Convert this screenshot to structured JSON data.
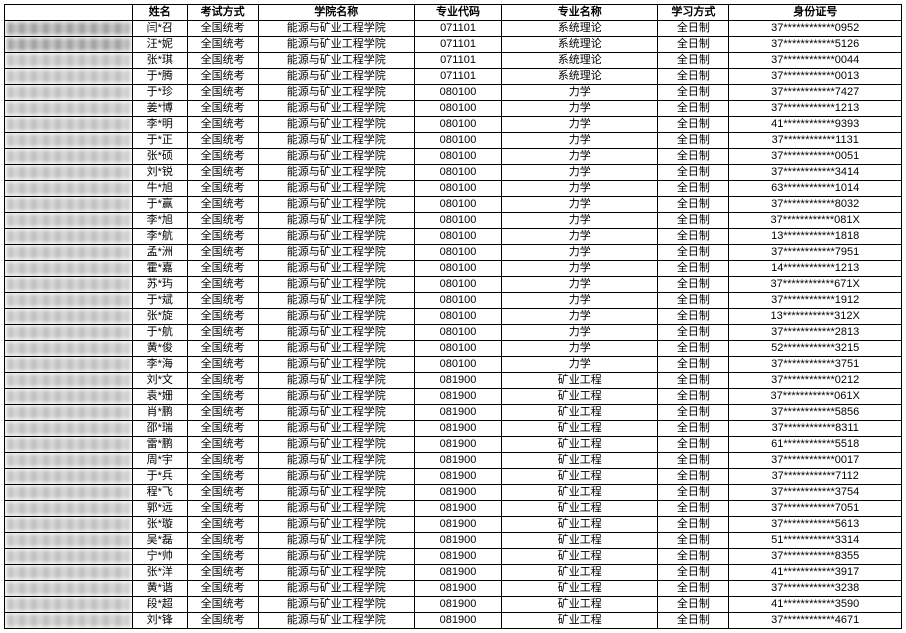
{
  "table": {
    "headers": {
      "idx": "",
      "name": "姓名",
      "exam": "考试方式",
      "college": "学院名称",
      "major_code": "专业代码",
      "major_name": "专业名称",
      "study_mode": "学习方式",
      "id_number": "身份证号"
    },
    "constants": {
      "exam": "全国统考",
      "college": "能源与矿业工程学院",
      "study_mode": "全日制"
    },
    "rows": [
      {
        "idx": "1",
        "name": "闫*召",
        "mcode": "071101",
        "mname": "系统理论",
        "idnum": "37************0952"
      },
      {
        "idx": "10",
        "name": "汪*妮",
        "mcode": "071101",
        "mname": "系统理论",
        "idnum": "37************5126"
      },
      {
        "idx": "10",
        "name": "张*琪",
        "mcode": "071101",
        "mname": "系统理论",
        "idnum": "37************0044"
      },
      {
        "idx": "104",
        "name": "于*腾",
        "mcode": "071101",
        "mname": "系统理论",
        "idnum": "37************0013"
      },
      {
        "idx": "104",
        "name": "于*珍",
        "mcode": "080100",
        "mname": "力学",
        "idnum": "37************7427"
      },
      {
        "idx": "10",
        "name": "姜*博",
        "mcode": "080100",
        "mname": "力学",
        "idnum": "37************1213"
      },
      {
        "idx": "10",
        "name": "李*明",
        "mcode": "080100",
        "mname": "力学",
        "idnum": "41************9393"
      },
      {
        "idx": "10",
        "name": "于*正",
        "mcode": "080100",
        "mname": "力学",
        "idnum": "37************1131"
      },
      {
        "idx": "10",
        "name": "张*硕",
        "mcode": "080100",
        "mname": "力学",
        "idnum": "37************0051"
      },
      {
        "idx": "104",
        "name": "刘*锐",
        "mcode": "080100",
        "mname": "力学",
        "idnum": "37************3414"
      },
      {
        "idx": "106",
        "name": "牛*旭",
        "mcode": "080100",
        "mname": "力学",
        "idnum": "63************1014"
      },
      {
        "idx": "102",
        "name": "于*赢",
        "mcode": "080100",
        "mname": "力学",
        "idnum": "37************8032"
      },
      {
        "idx": "102",
        "name": "李*旭",
        "mcode": "080100",
        "mname": "力学",
        "idnum": "37************081X"
      },
      {
        "idx": "102",
        "name": "李*航",
        "mcode": "080100",
        "mname": "力学",
        "idnum": "13************1818"
      },
      {
        "idx": "10",
        "name": "孟*洲",
        "mcode": "080100",
        "mname": "力学",
        "idnum": "37************7951"
      },
      {
        "idx": "101",
        "name": "霍*嘉",
        "mcode": "080100",
        "mname": "力学",
        "idnum": "14************1213"
      },
      {
        "idx": "102",
        "name": "苏*玙",
        "mcode": "080100",
        "mname": "力学",
        "idnum": "37************671X"
      },
      {
        "idx": "102",
        "name": "于*斌",
        "mcode": "080100",
        "mname": "力学",
        "idnum": "37************1912"
      },
      {
        "idx": "101",
        "name": "张*旋",
        "mcode": "080100",
        "mname": "力学",
        "idnum": "13************312X"
      },
      {
        "idx": "102",
        "name": "于*航",
        "mcode": "080100",
        "mname": "力学",
        "idnum": "37************2813"
      },
      {
        "idx": "106",
        "name": "黄*俊",
        "mcode": "080100",
        "mname": "力学",
        "idnum": "52************3215"
      },
      {
        "idx": "10",
        "name": "李*海",
        "mcode": "080100",
        "mname": "力学",
        "idnum": "37************3751"
      },
      {
        "idx": "10",
        "name": "刘*文",
        "mcode": "081900",
        "mname": "矿业工程",
        "idnum": "37************0212"
      },
      {
        "idx": "10",
        "name": "袁*姗",
        "mcode": "081900",
        "mname": "矿业工程",
        "idnum": "37************061X"
      },
      {
        "idx": "10",
        "name": "肖*鹏",
        "mcode": "081900",
        "mname": "矿业工程",
        "idnum": "37************5856"
      },
      {
        "idx": "104",
        "name": "邵*瑞",
        "mcode": "081900",
        "mname": "矿业工程",
        "idnum": "37************8311"
      },
      {
        "idx": "104",
        "name": "雷*鹏",
        "mcode": "081900",
        "mname": "矿业工程",
        "idnum": "61************5518"
      },
      {
        "idx": "104",
        "name": "周*宇",
        "mcode": "081900",
        "mname": "矿业工程",
        "idnum": "37************0017"
      },
      {
        "idx": "104",
        "name": "于*兵",
        "mcode": "081900",
        "mname": "矿业工程",
        "idnum": "37************7112"
      },
      {
        "idx": "102",
        "name": "程*飞",
        "mcode": "081900",
        "mname": "矿业工程",
        "idnum": "37************3754"
      },
      {
        "idx": "104",
        "name": "郭*远",
        "mcode": "081900",
        "mname": "矿业工程",
        "idnum": "37************7051"
      },
      {
        "idx": "104",
        "name": "张*璇",
        "mcode": "081900",
        "mname": "矿业工程",
        "idnum": "37************5613"
      },
      {
        "idx": "104",
        "name": "吴*磊",
        "mcode": "081900",
        "mname": "矿业工程",
        "idnum": "51************3314"
      },
      {
        "idx": "104",
        "name": "宁*帅",
        "mcode": "081900",
        "mname": "矿业工程",
        "idnum": "37************8355"
      },
      {
        "idx": "104",
        "name": "张*洋",
        "mcode": "081900",
        "mname": "矿业工程",
        "idnum": "41************3917"
      },
      {
        "idx": "1042",
        "name": "黄*谐",
        "mcode": "081900",
        "mname": "矿业工程",
        "idnum": "37************3238"
      },
      {
        "idx": "1042",
        "name": "段*超",
        "mcode": "081900",
        "mname": "矿业工程",
        "idnum": "41************3590"
      },
      {
        "idx": "10424",
        "name": "刘*锋",
        "mcode": "081900",
        "mname": "矿业工程",
        "idnum": "37************4671"
      }
    ]
  }
}
